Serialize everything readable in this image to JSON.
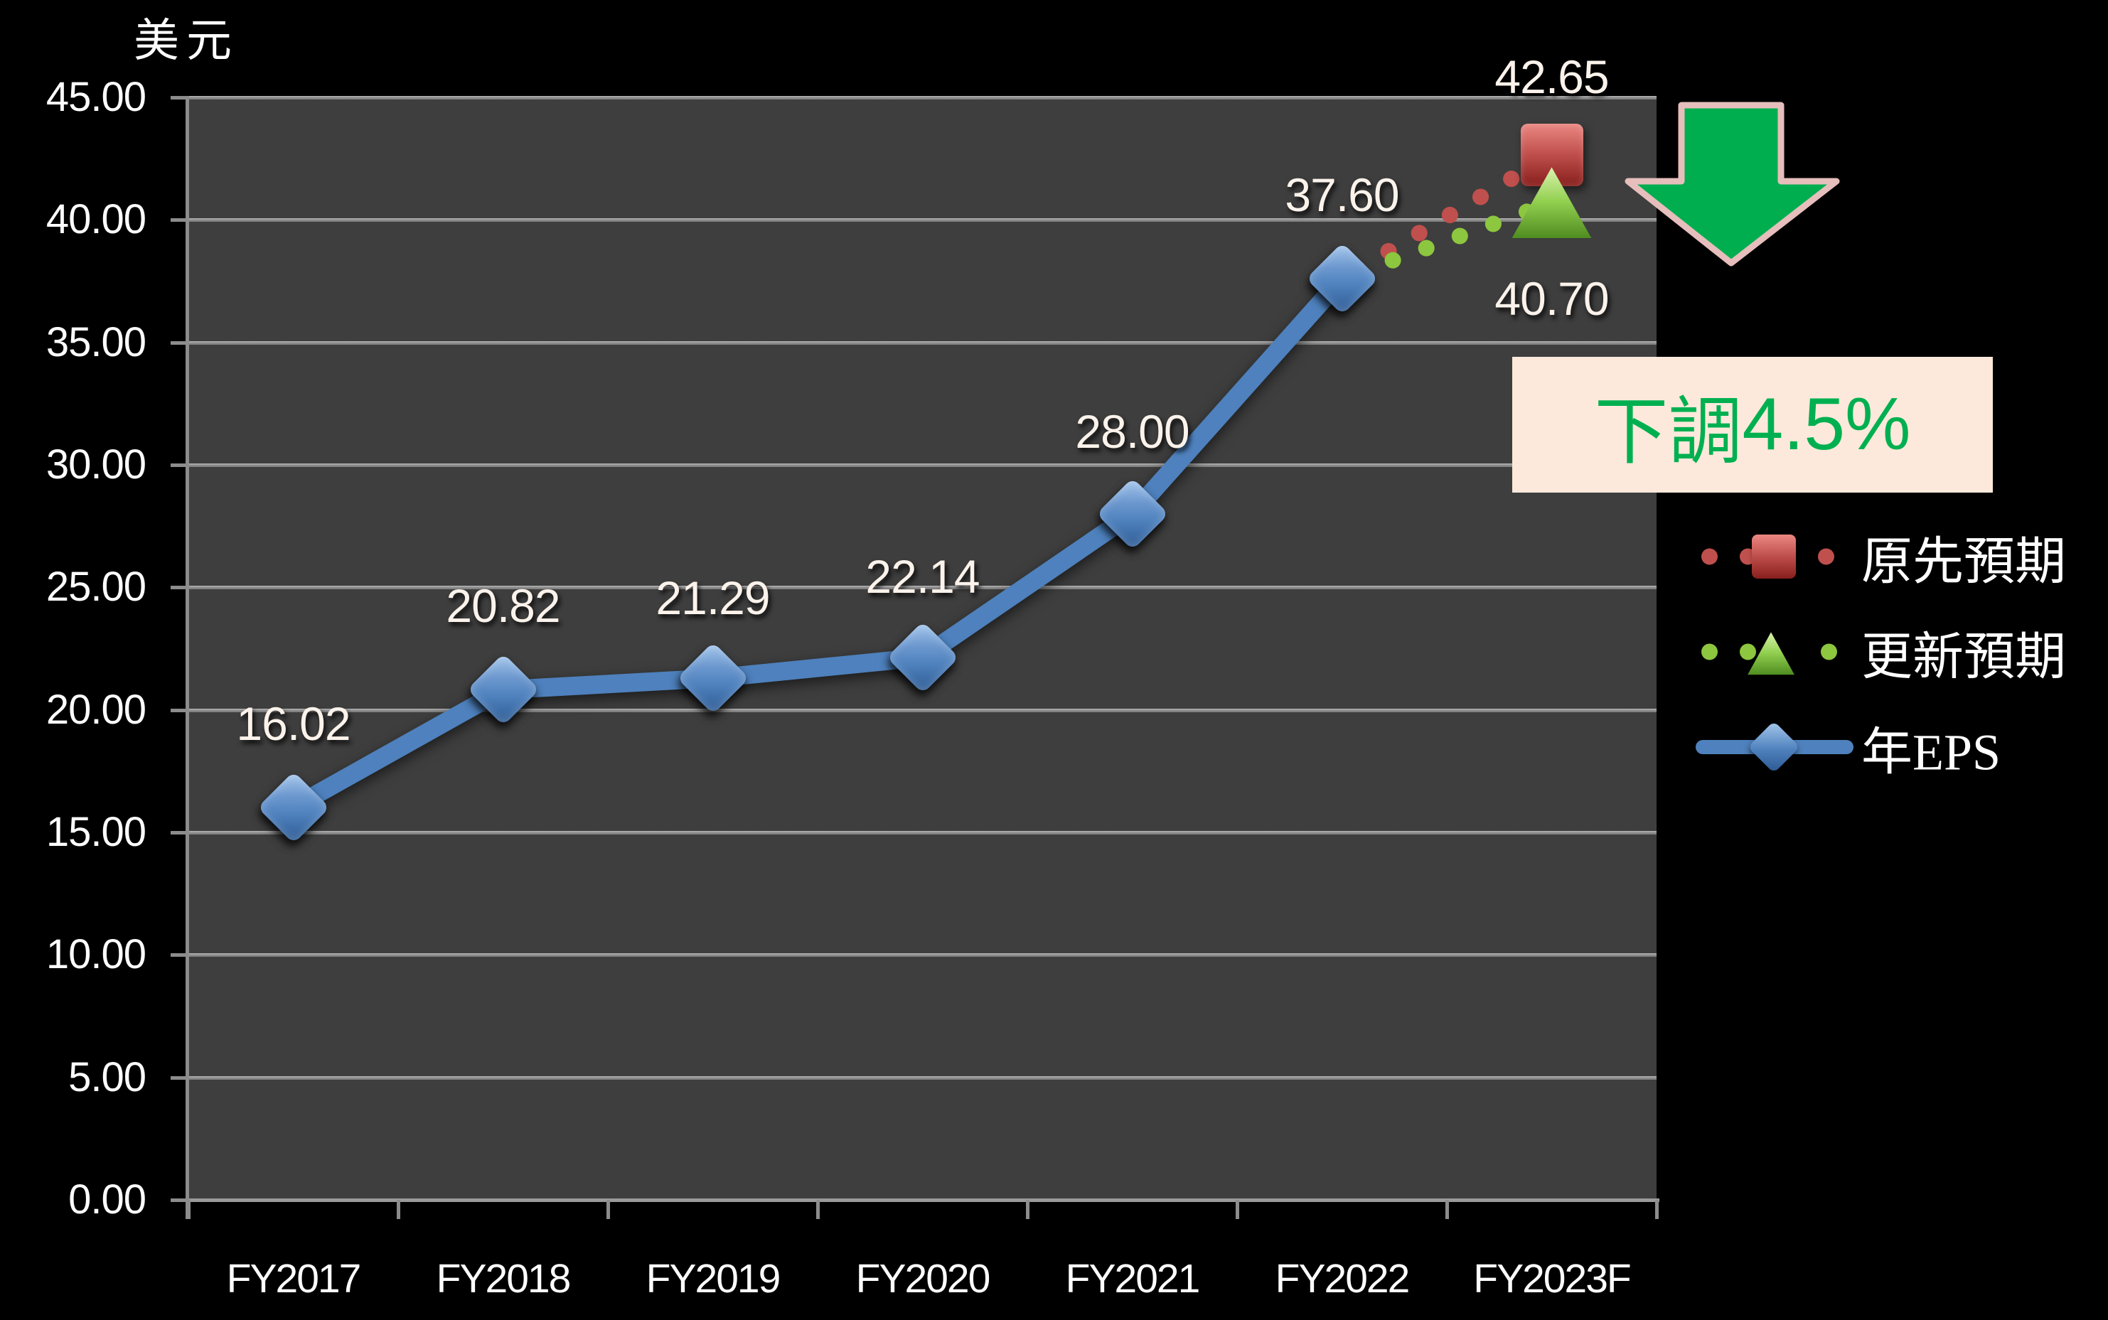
{
  "unit_label": "美元",
  "axis": {
    "y_tick_labels": [
      "45.00",
      "40.00",
      "35.00",
      "30.00",
      "25.00",
      "20.00",
      "15.00",
      "10.00",
      "5.00",
      "0.00"
    ],
    "x_labels": [
      "FY2017",
      "FY2018",
      "FY2019",
      "FY2020",
      "FY2021",
      "FY2022",
      "FY2023F"
    ]
  },
  "legend": {
    "items": [
      {
        "label": "原先預期",
        "marker": "dotted-line-red-square"
      },
      {
        "label": "更新預期",
        "marker": "dotted-line-green-triangle"
      },
      {
        "label": "年EPS",
        "marker": "solid-line-blue-diamond"
      }
    ]
  },
  "callout": {
    "prefix": "下調",
    "pct": "4.5%",
    "text_color": "#00B050",
    "bg": "#FCE9DB"
  },
  "arrow_icon": {
    "meaning": "down-arrow",
    "fill": "#00AE4F",
    "outline": "#E6BEBC"
  },
  "colors": {
    "page_bg": "#000000",
    "plot_bg": "#3E3E3E",
    "gridline": "#8A8A8A",
    "axis_text": "#FFFFFF",
    "eps_blue": "#4E81BD",
    "forecast_red": "#C0504D",
    "forecast_green": "#8DC63F"
  },
  "chart_data": {
    "type": "line",
    "title": "",
    "ylabel": "美元",
    "xlabel": "",
    "categories": [
      "FY2017",
      "FY2018",
      "FY2019",
      "FY2020",
      "FY2021",
      "FY2022",
      "FY2023F"
    ],
    "ylim": [
      0,
      45
    ],
    "ytick_step": 5,
    "grid": true,
    "legend_position": "right",
    "series": [
      {
        "name": "年EPS",
        "color": "#4E81BD",
        "marker": "diamond",
        "line_style": "solid",
        "values": [
          16.02,
          20.82,
          21.29,
          22.14,
          28.0,
          37.6,
          null
        ]
      },
      {
        "name": "原先預期",
        "color": "#C0504D",
        "marker": "square",
        "line_style": "dotted",
        "values": [
          null,
          null,
          null,
          null,
          null,
          37.6,
          42.65
        ]
      },
      {
        "name": "更新預期",
        "color": "#8DC63F",
        "marker": "triangle",
        "line_style": "dotted",
        "values": [
          null,
          null,
          null,
          null,
          null,
          37.6,
          40.7
        ]
      }
    ],
    "point_labels": [
      {
        "text": "16.02",
        "x_index": 0,
        "value": 16.02,
        "dy": -118
      },
      {
        "text": "20.82",
        "x_index": 1,
        "value": 20.82,
        "dy": -118
      },
      {
        "text": "21.29",
        "x_index": 2,
        "value": 21.29,
        "dy": -113
      },
      {
        "text": "22.14",
        "x_index": 3,
        "value": 22.14,
        "dy": -114
      },
      {
        "text": "28.00",
        "x_index": 4,
        "value": 28.0,
        "dy": -116
      },
      {
        "text": "37.60",
        "x_index": 5,
        "value": 37.6,
        "dy": -118
      },
      {
        "text": "42.65",
        "x_index": 6,
        "value": 42.65,
        "dy": -110
      },
      {
        "text": "40.70",
        "x_index": 6,
        "value": 40.7,
        "dy": 135
      }
    ],
    "annotation": {
      "text": "下調4.5%",
      "change_pct": -4.5
    }
  }
}
